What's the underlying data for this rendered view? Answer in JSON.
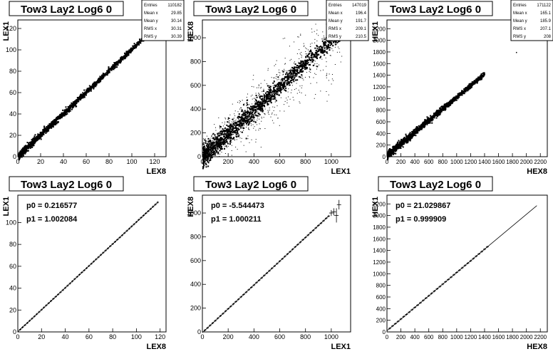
{
  "panels": [
    {
      "title": "Tow3 Lay2 Log6 0",
      "stats": {
        "rows": [
          [
            "Entries",
            "110182"
          ],
          [
            "Mean x",
            "29.85"
          ],
          [
            "Mean y",
            "30.14"
          ],
          [
            "RMS x",
            "30.31"
          ],
          [
            "RMS y",
            "30.39"
          ]
        ]
      },
      "chart_data": {
        "type": "scatter",
        "xlabel": "LEX8",
        "ylabel": "LEX1",
        "xlim": [
          0,
          130
        ],
        "ylim": [
          0,
          128
        ],
        "xticks": [
          0,
          20,
          40,
          60,
          80,
          100,
          120
        ],
        "yticks": [
          0,
          20,
          40,
          60,
          80,
          100,
          120
        ],
        "series": [
          {
            "points": [
              [
                1,
                1
              ],
              [
                10,
                10.3
              ],
              [
                20,
                20.2
              ],
              [
                30,
                30.1
              ],
              [
                40,
                40.2
              ],
              [
                50,
                50.1
              ],
              [
                60,
                60.2
              ],
              [
                70,
                70.1
              ],
              [
                80,
                80.1
              ],
              [
                90,
                90.2
              ],
              [
                100,
                100.1
              ],
              [
                110,
                110.2
              ],
              [
                113,
                113.5
              ]
            ],
            "spread_frac": 0.008,
            "outliers": 0
          }
        ]
      }
    },
    {
      "title": "Tow3 Lay2 Log6 0",
      "stats": {
        "rows": [
          [
            "Entries",
            "147019"
          ],
          [
            "Mean x",
            "196.4"
          ],
          [
            "Mean y",
            "191.7"
          ],
          [
            "RMS x",
            "209.1"
          ],
          [
            "RMS y",
            "210.5"
          ]
        ]
      },
      "chart_data": {
        "type": "scatter",
        "xlabel": "LEX1",
        "ylabel": "HEX8",
        "xlim": [
          0,
          1150
        ],
        "ylim": [
          0,
          1150
        ],
        "xticks": [
          0,
          200,
          400,
          600,
          800,
          1000
        ],
        "yticks": [
          0,
          200,
          400,
          600,
          800,
          1000
        ],
        "series": [
          {
            "points": [
              [
                5,
                5
              ],
              [
                100,
                98
              ],
              [
                200,
                195
              ],
              [
                300,
                292
              ],
              [
                400,
                392
              ],
              [
                500,
                488
              ],
              [
                600,
                585
              ],
              [
                700,
                682
              ],
              [
                800,
                780
              ],
              [
                900,
                875
              ],
              [
                1000,
                970
              ],
              [
                1080,
                1050
              ]
            ],
            "spread_frac": 0.025,
            "outliers": 900
          }
        ]
      }
    },
    {
      "title": "Tow3 Lay2 Log6 0",
      "stats": {
        "rows": [
          [
            "Entries",
            "171122"
          ],
          [
            "Mean x",
            "165.1"
          ],
          [
            "Mean y",
            "185.9"
          ],
          [
            "RMS x",
            "207.1"
          ],
          [
            "RMS y",
            "208"
          ]
        ]
      },
      "chart_data": {
        "type": "scatter",
        "xlabel": "HEX8",
        "ylabel": "HEX1",
        "xlim": [
          0,
          2300
        ],
        "ylim": [
          0,
          2350
        ],
        "xticks": [
          0,
          200,
          400,
          600,
          800,
          1000,
          1200,
          1400,
          1600,
          1800,
          2000,
          2200
        ],
        "yticks": [
          0,
          200,
          400,
          600,
          800,
          1000,
          1200,
          1400,
          1600,
          1800,
          2000,
          2200
        ],
        "series": [
          {
            "points": [
              [
                10,
                30
              ],
              [
                200,
                220
              ],
              [
                400,
                420
              ],
              [
                600,
                620
              ],
              [
                700,
                720
              ],
              [
                900,
                920
              ],
              [
                1100,
                1120
              ],
              [
                1300,
                1320
              ],
              [
                1400,
                1420
              ]
            ],
            "spread_frac": 0.008,
            "outliers": 0,
            "isolated": [
              [
                1850,
                1800
              ]
            ]
          }
        ]
      }
    },
    {
      "title": "Tow3 Lay2 Log6 0",
      "fit": [
        "p0 = 0.216577",
        "p1 = 1.002084"
      ],
      "chart_data": {
        "type": "line",
        "xlabel": "LEX8",
        "ylabel": "LEX1",
        "xlim": [
          0,
          125
        ],
        "ylim": [
          0,
          125
        ],
        "xticks": [
          0,
          20,
          40,
          60,
          80,
          100,
          120
        ],
        "yticks": [
          0,
          20,
          40,
          60,
          80,
          100
        ],
        "fit": {
          "p0": 0.216577,
          "p1": 1.002084
        },
        "profile": {
          "x_start": 2,
          "x_end": 118,
          "step": 2
        }
      }
    },
    {
      "title": "Tow3 Lay2 Log6 0",
      "fit": [
        "p0 = -5.544473",
        "p1 = 1.000211"
      ],
      "chart_data": {
        "type": "line",
        "xlabel": "LEX1",
        "ylabel": "HEX8",
        "xlim": [
          0,
          1150
        ],
        "ylim": [
          0,
          1150
        ],
        "xticks": [
          0,
          200,
          400,
          600,
          800,
          1000
        ],
        "yticks": [
          0,
          200,
          400,
          600,
          800,
          1000
        ],
        "fit": {
          "p0": -5.544473,
          "p1": 1.000211
        },
        "profile": {
          "x_start": 20,
          "x_end": 980,
          "step": 20
        },
        "extra_points": [
          [
            1000,
            1000,
            25
          ],
          [
            1020,
            1010,
            30
          ],
          [
            1040,
            980,
            60
          ],
          [
            1060,
            1070,
            40
          ]
        ]
      }
    },
    {
      "title": "Tow3 Lay2 Log6 0",
      "fit": [
        "p0 = 21.029867",
        "p1 = 0.999909"
      ],
      "chart_data": {
        "type": "line",
        "xlabel": "HEX8",
        "ylabel": "HEX1",
        "xlim": [
          0,
          2300
        ],
        "ylim": [
          0,
          2350
        ],
        "xticks": [
          0,
          200,
          400,
          600,
          800,
          1000,
          1200,
          1400,
          1600,
          1800,
          2000,
          2200
        ],
        "yticks": [
          0,
          200,
          400,
          600,
          800,
          1000,
          1200,
          1400,
          1600,
          1800,
          2000,
          2200
        ],
        "fit": {
          "p0": 21.029867,
          "p1": 0.999909
        },
        "profile": {
          "x_start": 40,
          "x_end": 1440,
          "step": 40
        },
        "fit_x_end": 2150
      }
    }
  ]
}
